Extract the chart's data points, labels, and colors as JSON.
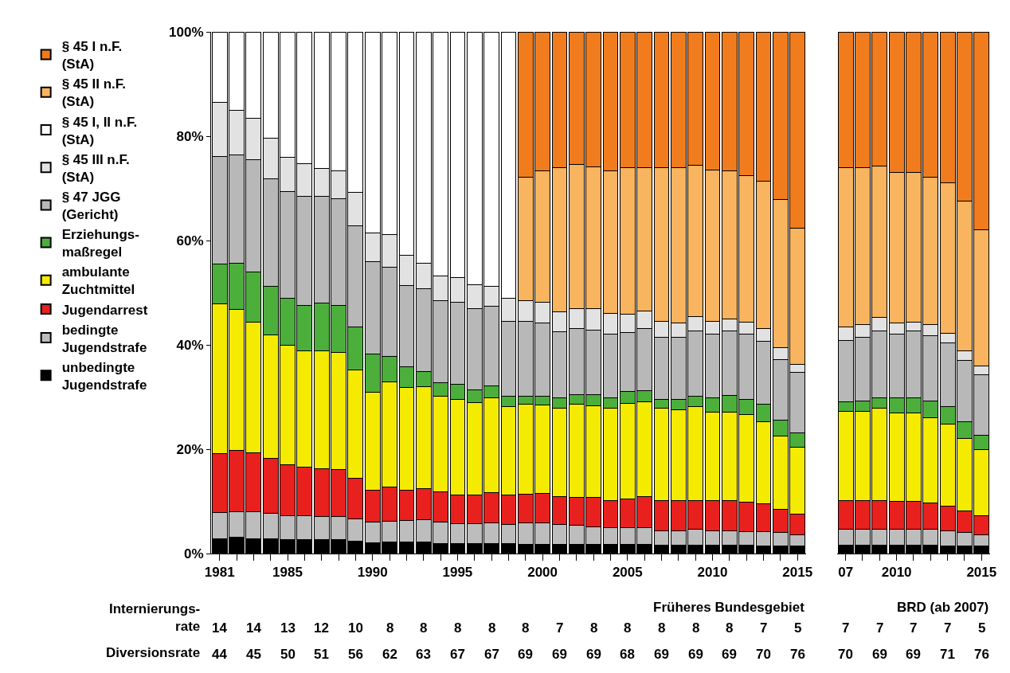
{
  "chart_data": [
    {
      "type": "bar",
      "stacked": true,
      "legend": "left",
      "categories": [
        "1981",
        null,
        null,
        null,
        "1985",
        null,
        null,
        null,
        null,
        "1990",
        null,
        null,
        null,
        null,
        "1995",
        null,
        null,
        null,
        null,
        "2000",
        null,
        null,
        null,
        null,
        "2005",
        null,
        null,
        null,
        null,
        "2010",
        null,
        null,
        null,
        null,
        "2015"
      ],
      "ylim": [
        0,
        100
      ],
      "yticks": [
        {
          "value": 0,
          "label": "0%"
        },
        {
          "value": 20,
          "label": "20%"
        },
        {
          "value": 40,
          "label": "40%"
        },
        {
          "value": 60,
          "label": "60%"
        },
        {
          "value": 80,
          "label": "80%"
        },
        {
          "value": 100,
          "label": "100%"
        }
      ],
      "series": [
        {
          "name": "unbedingte\nJugendstrafe",
          "color": "#000000",
          "values": [
            2.9,
            3.1,
            2.9,
            2.9,
            2.6,
            2.6,
            2.6,
            2.6,
            2.4,
            2.0,
            2.2,
            2.2,
            2.2,
            1.9,
            1.9,
            1.9,
            1.9,
            1.9,
            1.8,
            1.8,
            1.8,
            1.7,
            1.7,
            1.7,
            1.7,
            1.7,
            1.6,
            1.6,
            1.6,
            1.6,
            1.6,
            1.6,
            1.5,
            1.5,
            1.5
          ]
        },
        {
          "name": "bedingte\nJugendstrafe",
          "color": "#bdbdbd",
          "values": [
            5.0,
            4.9,
            5.1,
            4.8,
            4.6,
            4.6,
            4.5,
            4.5,
            4.2,
            4.1,
            4.0,
            4.2,
            4.3,
            4.2,
            3.9,
            3.9,
            4.0,
            3.7,
            4.1,
            4.1,
            3.8,
            3.7,
            3.4,
            3.2,
            3.2,
            3.2,
            2.8,
            2.8,
            3.0,
            2.8,
            2.8,
            2.6,
            2.7,
            2.6,
            2.1
          ]
        },
        {
          "name": "Jugendarrest",
          "color": "#e8201e",
          "values": [
            11.3,
            11.8,
            11.3,
            10.5,
            9.8,
            9.4,
            9.2,
            9.0,
            7.9,
            6.1,
            6.5,
            5.8,
            6.0,
            5.8,
            5.4,
            5.4,
            5.8,
            5.6,
            5.4,
            5.6,
            5.3,
            5.3,
            5.6,
            5.3,
            5.6,
            6.0,
            5.8,
            5.8,
            5.6,
            5.8,
            5.8,
            5.7,
            5.3,
            4.4,
            3.9
          ]
        },
        {
          "name": "ambulante\nZuchtmittel",
          "color": "#f5eb00",
          "values": [
            28.6,
            27.0,
            25.1,
            23.7,
            22.9,
            22.3,
            22.6,
            22.4,
            20.7,
            18.7,
            20.2,
            19.7,
            19.5,
            18.3,
            18.3,
            17.7,
            18.1,
            16.9,
            17.3,
            17.0,
            17.0,
            17.9,
            17.6,
            17.7,
            18.3,
            18.2,
            17.7,
            17.3,
            17.9,
            16.9,
            16.9,
            16.7,
            15.8,
            14.0,
            12.9
          ]
        },
        {
          "name": "Erziehungs-\nmaßregel",
          "color": "#4caf3c",
          "values": [
            7.7,
            8.9,
            9.5,
            9.3,
            9.1,
            8.7,
            9.1,
            9.0,
            8.3,
            7.4,
            4.9,
            3.9,
            2.9,
            2.6,
            2.9,
            2.4,
            2.3,
            2.0,
            1.6,
            1.6,
            1.9,
            1.8,
            2.1,
            2.0,
            2.2,
            2.1,
            1.7,
            2.0,
            2.1,
            2.7,
            3.2,
            3.0,
            3.3,
            3.1,
            2.7
          ]
        },
        {
          "name": "§ 47 JGG\n(Gericht)",
          "color": "#b8b8b8",
          "values": [
            20.6,
            20.7,
            21.6,
            20.7,
            20.4,
            20.8,
            20.4,
            20.5,
            19.4,
            17.7,
            17.1,
            15.6,
            15.9,
            15.7,
            15.8,
            15.6,
            15.3,
            14.4,
            14.3,
            14.1,
            12.7,
            12.8,
            12.5,
            12.2,
            11.4,
            11.9,
            11.9,
            11.9,
            12.5,
            12.3,
            12.4,
            12.5,
            12.1,
            11.6,
            11.7
          ]
        },
        {
          "name": "§ 45 III n.F.\n(StA)",
          "color": "#e2e2e2",
          "values": [
            10.4,
            8.5,
            7.9,
            7.7,
            6.5,
            6.3,
            5.4,
            5.3,
            6.3,
            5.4,
            6.3,
            5.8,
            4.9,
            4.7,
            4.7,
            4.6,
            3.8,
            4.4,
            4.0,
            4.0,
            3.9,
            3.8,
            4.0,
            3.9,
            3.5,
            3.4,
            3.0,
            2.8,
            2.7,
            2.4,
            2.2,
            2.3,
            2.5,
            2.2,
            1.4
          ]
        },
        {
          "name": "§ 45 I, II n.F.\n(StA)",
          "color": "#ffffff",
          "values": [
            13.5,
            15.1,
            16.6,
            20.4,
            24.1,
            25.3,
            26.2,
            26.7,
            30.8,
            38.6,
            38.8,
            42.8,
            44.3,
            46.8,
            47.1,
            48.5,
            48.8,
            51.1,
            null,
            null,
            null,
            null,
            null,
            null,
            null,
            null,
            null,
            null,
            null,
            null,
            null,
            null,
            null,
            null,
            null
          ]
        },
        {
          "name": "§ 45 II n.F.\n(StA)",
          "color": "#f8b45e",
          "values": [
            null,
            null,
            null,
            null,
            null,
            null,
            null,
            null,
            null,
            null,
            null,
            null,
            null,
            null,
            null,
            null,
            null,
            null,
            23.6,
            25.2,
            27.5,
            27.6,
            27.2,
            27.4,
            28.0,
            27.4,
            29.4,
            29.7,
            29.0,
            29.0,
            28.4,
            28.0,
            28.1,
            28.4,
            26.1
          ]
        },
        {
          "name": "§ 45 I n.F.\n(StA)",
          "color": "#f07c1e",
          "values": [
            null,
            null,
            null,
            null,
            null,
            null,
            null,
            null,
            null,
            null,
            null,
            null,
            null,
            null,
            null,
            null,
            null,
            null,
            27.9,
            26.6,
            26.1,
            25.4,
            25.9,
            26.6,
            26.1,
            26.1,
            26.1,
            26.1,
            25.6,
            26.5,
            26.7,
            27.6,
            28.7,
            32.2,
            37.7
          ]
        }
      ],
      "annotations": [
        "Früheres Bundesgebiet",
        "Internierungs-\nrate",
        "Diversionsrate",
        "14 14 13 12 10 8 8 8 8 8 7 8 8 8 8 8 7 5",
        "44 45 50 51 56 62 63 67 67 69 69 69 68 69 69 69 70 76"
      ]
    },
    {
      "type": "bar",
      "stacked": true,
      "legend": false,
      "tick_labels": "x",
      "categories": [
        "07",
        null,
        null,
        "2010",
        null,
        null,
        null,
        null,
        "2015"
      ],
      "ylim": [
        0,
        100
      ],
      "series": [
        {
          "color": "#000000",
          "values": [
            1.6,
            1.6,
            1.6,
            1.6,
            1.6,
            1.6,
            1.5,
            1.5,
            1.4
          ]
        },
        {
          "color": "#bdbdbd",
          "values": [
            3.1,
            3.0,
            3.0,
            3.0,
            3.0,
            3.0,
            2.9,
            2.5,
            2.2
          ]
        },
        {
          "color": "#e8201e",
          "values": [
            5.5,
            5.6,
            5.6,
            5.4,
            5.4,
            5.1,
            4.7,
            4.1,
            3.6
          ]
        },
        {
          "color": "#f5eb00",
          "values": [
            17.0,
            17.0,
            17.7,
            17.0,
            17.0,
            16.4,
            15.7,
            14.0,
            12.8
          ]
        },
        {
          "color": "#4caf3c",
          "values": [
            1.9,
            2.0,
            1.9,
            2.8,
            2.9,
            3.2,
            3.3,
            3.2,
            2.6
          ]
        },
        {
          "color": "#b8b8b8",
          "values": [
            11.8,
            12.2,
            12.9,
            12.3,
            12.7,
            12.4,
            12.3,
            11.8,
            11.7
          ]
        },
        {
          "color": "#e2e2e2",
          "values": [
            2.6,
            2.5,
            2.5,
            2.1,
            1.8,
            2.2,
            1.8,
            1.8,
            1.7
          ]
        },
        {
          "color": "#f8b45e",
          "values": [
            30.4,
            30.1,
            29.1,
            28.9,
            28.7,
            28.2,
            28.9,
            28.7,
            26.1
          ]
        },
        {
          "color": "#f07c1e",
          "values": [
            26.1,
            26.0,
            25.7,
            26.9,
            26.9,
            27.9,
            28.9,
            32.4,
            37.9
          ]
        }
      ],
      "annotations": [
        "BRD (ab 2007)",
        "7 7 7 7 5",
        "70 69 69 71 76"
      ]
    }
  ]
}
